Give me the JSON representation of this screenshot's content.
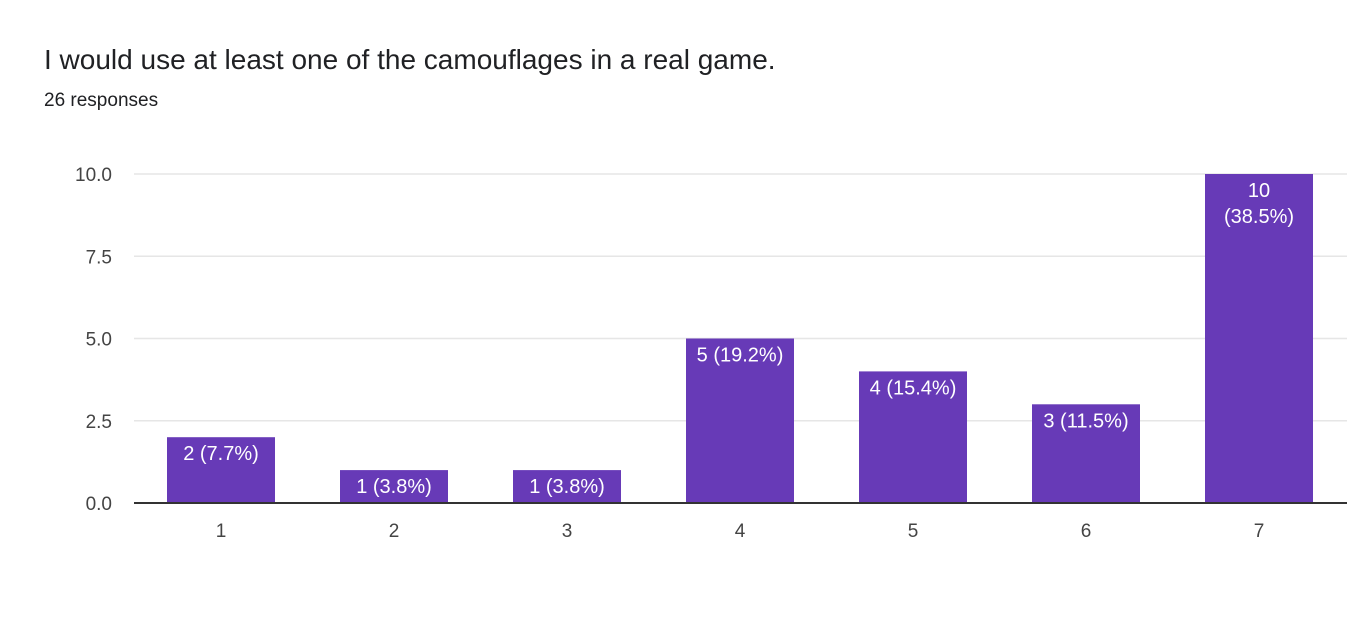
{
  "question": {
    "title": "I would use at least one of the camouflages in a real game.",
    "responses": "26 responses"
  },
  "colors": {
    "bar": "#673ab7",
    "grid": "#e6e6e6",
    "axis": "#333333",
    "text": "#202124",
    "tick_text": "#444444",
    "label_text": "#ffffff"
  },
  "chart_data": {
    "type": "bar",
    "categories": [
      "1",
      "2",
      "3",
      "4",
      "5",
      "6",
      "7"
    ],
    "values": [
      2,
      1,
      1,
      5,
      4,
      3,
      10
    ],
    "data_labels": [
      [
        "2 (7.7%)"
      ],
      [
        "1 (3.8%)"
      ],
      [
        "1 (3.8%)"
      ],
      [
        "5 (19.2%)"
      ],
      [
        "4 (15.4%)"
      ],
      [
        "3 (11.5%)"
      ],
      [
        "10",
        "(38.5%)"
      ]
    ],
    "y_ticks": [
      "0.0",
      "2.5",
      "5.0",
      "7.5",
      "10.0"
    ],
    "ylim": [
      0,
      10
    ],
    "grid": true,
    "legend": "none"
  }
}
